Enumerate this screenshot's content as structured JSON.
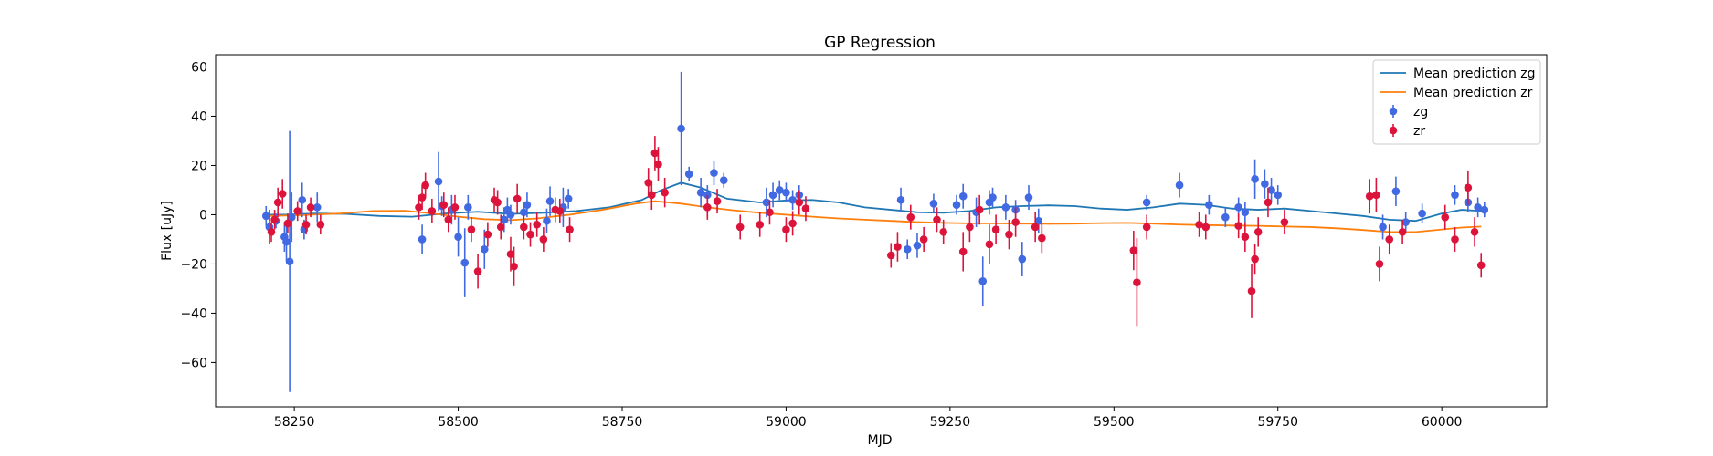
{
  "chart_data": {
    "type": "scatter",
    "title": "GP Regression",
    "xlabel": "MJD",
    "ylabel": "Flux [uJy]",
    "xlim": [
      58130,
      60160
    ],
    "ylim": [
      -78,
      65
    ],
    "x_ticks": [
      58250,
      58500,
      58750,
      59000,
      59250,
      59500,
      59750,
      60000
    ],
    "y_ticks": [
      -60,
      -40,
      -20,
      0,
      20,
      40,
      60
    ],
    "grid": false,
    "legend_position": "top-right",
    "series": [
      {
        "name": "Mean prediction zg",
        "kind": "line",
        "color": "#1f77b4",
        "x": [
          58210,
          58240,
          58280,
          58330,
          58380,
          58430,
          58480,
          58530,
          58580,
          58630,
          58680,
          58730,
          58780,
          58810,
          58840,
          58870,
          58910,
          58960,
          59000,
          59040,
          59080,
          59120,
          59160,
          59200,
          59240,
          59280,
          59320,
          59360,
          59400,
          59440,
          59480,
          59520,
          59560,
          59600,
          59640,
          59680,
          59720,
          59760,
          59800,
          59840,
          59880,
          59920,
          59960,
          60000,
          60030,
          60060
        ],
        "y": [
          0,
          0,
          0.5,
          0.3,
          -0.5,
          -0.8,
          0.5,
          1.2,
          0.3,
          0.8,
          1.5,
          3.0,
          6.0,
          10.0,
          13.0,
          11.0,
          6.5,
          5.0,
          5.8,
          6.0,
          5.0,
          3.0,
          2.0,
          1.0,
          0.8,
          1.5,
          3.0,
          3.5,
          3.8,
          3.5,
          2.5,
          2.0,
          3.0,
          4.5,
          4.0,
          2.5,
          2.0,
          2.5,
          1.5,
          0.5,
          -0.5,
          -2.0,
          -2.5,
          0.5,
          2.0,
          1.5
        ]
      },
      {
        "name": "Mean prediction zr",
        "kind": "line",
        "color": "#ff7f0e",
        "x": [
          58210,
          58260,
          58320,
          58370,
          58420,
          58460,
          58500,
          58540,
          58580,
          58620,
          58670,
          58720,
          58770,
          58800,
          58840,
          58880,
          58920,
          58960,
          59000,
          59040,
          59080,
          59120,
          59160,
          59200,
          59240,
          59280,
          59320,
          59360,
          59400,
          59440,
          59480,
          59520,
          59560,
          59600,
          59640,
          59680,
          59720,
          59760,
          59800,
          59840,
          59880,
          59920,
          59960,
          60000,
          60030,
          60060
        ],
        "y": [
          -0.5,
          -0.2,
          0.5,
          1.5,
          1.6,
          0.5,
          -0.8,
          -1.8,
          -2.2,
          -1.5,
          0.0,
          2.0,
          4.5,
          5.5,
          4.5,
          3.0,
          1.8,
          0.8,
          0.0,
          -0.8,
          -1.5,
          -2.0,
          -2.5,
          -3.0,
          -3.3,
          -3.5,
          -3.5,
          -3.6,
          -3.7,
          -3.6,
          -3.4,
          -3.3,
          -3.6,
          -4.0,
          -4.2,
          -4.4,
          -4.5,
          -4.8,
          -5.0,
          -5.5,
          -6.2,
          -7.0,
          -7.0,
          -6.0,
          -5.2,
          -4.8
        ]
      },
      {
        "name": "zg",
        "kind": "errorbar",
        "color": "#4169e1",
        "x": [
          58207,
          58212,
          58222,
          58235,
          58238,
          58243,
          58246,
          58262,
          58265,
          58285,
          58445,
          58470,
          58475,
          58490,
          58500,
          58510,
          58515,
          58540,
          58570,
          58575,
          58580,
          58600,
          58605,
          58635,
          58640,
          58660,
          58668,
          58840,
          58852,
          58870,
          58880,
          58890,
          58905,
          58970,
          58980,
          58990,
          59000,
          59010,
          59020,
          59175,
          59185,
          59200,
          59225,
          59260,
          59270,
          59290,
          59300,
          59310,
          59315,
          59335,
          59350,
          59360,
          59370,
          59385,
          59550,
          59600,
          59645,
          59670,
          59690,
          59700,
          59715,
          59730,
          59740,
          59750,
          59910,
          59930,
          59945,
          59970,
          60020,
          60040,
          60055,
          60065
        ],
        "y": [
          -0.5,
          -5.0,
          -2.5,
          -9.0,
          -11.0,
          -19.0,
          -1.0,
          6.0,
          -6.0,
          3.0,
          -10.0,
          13.5,
          3.5,
          2.0,
          -9.0,
          -19.5,
          3.0,
          -14.0,
          -2.0,
          2.0,
          0.0,
          1.0,
          4.0,
          -2.5,
          5.5,
          3.0,
          6.5,
          35.0,
          16.5,
          9.0,
          8.0,
          17.0,
          14.0,
          5.0,
          8.0,
          10.0,
          9.0,
          6.0,
          8.0,
          6.0,
          -14.0,
          -12.5,
          4.5,
          4.0,
          7.5,
          1.0,
          -27.0,
          5.0,
          7.0,
          3.0,
          2.0,
          -18.0,
          7.0,
          -2.5,
          5.0,
          12.0,
          4.0,
          -1.0,
          3.0,
          1.0,
          14.5,
          12.5,
          10.0,
          8.0,
          -5.0,
          9.5,
          -3.0,
          0.5,
          8.0,
          5.0,
          3.0,
          2.0
        ],
        "err": [
          4.0,
          7.0,
          3.0,
          6.0,
          8.0,
          53.0,
          10.0,
          7.0,
          4.0,
          6.0,
          6.0,
          12.0,
          4.0,
          6.0,
          8.0,
          14.0,
          5.0,
          8.0,
          5.0,
          5.0,
          4.0,
          4.0,
          5.0,
          5.0,
          6.0,
          8.0,
          4.0,
          23.0,
          3.0,
          6.0,
          4.0,
          5.0,
          3.0,
          6.0,
          5.0,
          4.0,
          4.0,
          4.0,
          4.0,
          5.0,
          4.0,
          5.0,
          4.0,
          4.0,
          5.0,
          6.0,
          10.0,
          5.0,
          4.0,
          5.0,
          4.0,
          7.0,
          5.0,
          5.0,
          3.0,
          5.0,
          4.0,
          4.0,
          4.0,
          4.0,
          8.0,
          6.0,
          5.0,
          4.0,
          5.0,
          6.0,
          4.0,
          4.0,
          4.0,
          4.0,
          4.0,
          3.0
        ]
      },
      {
        "name": "zr",
        "kind": "errorbar",
        "color": "#dc143c",
        "x": [
          58215,
          58220,
          58225,
          58232,
          58240,
          58255,
          58268,
          58275,
          58290,
          58440,
          58445,
          58450,
          58460,
          58478,
          58485,
          58495,
          58520,
          58530,
          58545,
          58555,
          58560,
          58565,
          58580,
          58585,
          58590,
          58600,
          58610,
          58620,
          58630,
          58648,
          58655,
          58670,
          58790,
          58795,
          58800,
          58805,
          58815,
          58880,
          58895,
          58930,
          58960,
          58975,
          59000,
          59010,
          59020,
          59030,
          59160,
          59170,
          59190,
          59210,
          59230,
          59240,
          59270,
          59280,
          59295,
          59310,
          59320,
          59340,
          59350,
          59380,
          59390,
          59530,
          59535,
          59550,
          59630,
          59640,
          59690,
          59700,
          59710,
          59715,
          59720,
          59735,
          59760,
          59890,
          59900,
          59905,
          59920,
          59940,
          60005,
          60020,
          60040,
          60050,
          60060
        ],
        "y": [
          -7.0,
          -2.0,
          5.0,
          8.5,
          -3.5,
          1.5,
          -4.0,
          3.0,
          -4.0,
          3.0,
          7.0,
          12.0,
          1.5,
          4.0,
          -2.0,
          3.0,
          -6.0,
          -23.0,
          -8.0,
          6.0,
          5.0,
          -5.0,
          -16.0,
          -21.0,
          6.5,
          -5.0,
          -8.0,
          -4.0,
          -10.0,
          2.0,
          1.5,
          -6.0,
          13.0,
          8.0,
          25.0,
          20.5,
          9.0,
          3.0,
          5.5,
          -5.0,
          -4.0,
          1.0,
          -6.0,
          -3.5,
          5.0,
          2.5,
          -16.5,
          -13.0,
          -1.0,
          -10.0,
          -2.0,
          -7.0,
          -15.0,
          -5.0,
          2.0,
          -12.0,
          -6.0,
          -8.0,
          -3.0,
          -5.0,
          -9.5,
          -14.5,
          -27.5,
          -5.0,
          -4.0,
          -5.0,
          -4.5,
          -9.0,
          -31.0,
          -18.0,
          -7.0,
          5.0,
          -3.0,
          7.5,
          8.0,
          -20.0,
          -10.0,
          -7.0,
          -1.0,
          -10.0,
          11.0,
          -7.0,
          -20.5
        ],
        "err": [
          4.0,
          4.0,
          6.0,
          6.0,
          4.0,
          4.0,
          4.0,
          4.0,
          4.0,
          5.0,
          5.0,
          5.0,
          5.0,
          5.0,
          5.0,
          5.0,
          5.0,
          7.0,
          5.0,
          5.0,
          5.0,
          5.0,
          7.0,
          8.0,
          6.0,
          5.0,
          5.0,
          5.0,
          5.0,
          5.0,
          5.0,
          5.0,
          6.0,
          6.0,
          7.0,
          7.0,
          6.0,
          5.0,
          5.0,
          5.0,
          5.0,
          5.0,
          5.0,
          5.0,
          5.0,
          5.0,
          5.0,
          6.0,
          5.0,
          5.0,
          5.0,
          5.0,
          8.0,
          6.0,
          6.0,
          8.0,
          6.0,
          6.0,
          6.0,
          6.0,
          6.0,
          8.0,
          18.0,
          5.0,
          5.0,
          5.0,
          5.0,
          6.0,
          11.0,
          6.0,
          6.0,
          6.0,
          5.0,
          7.0,
          7.0,
          7.0,
          6.0,
          5.0,
          5.0,
          5.0,
          7.0,
          6.0,
          5.0
        ]
      }
    ]
  }
}
